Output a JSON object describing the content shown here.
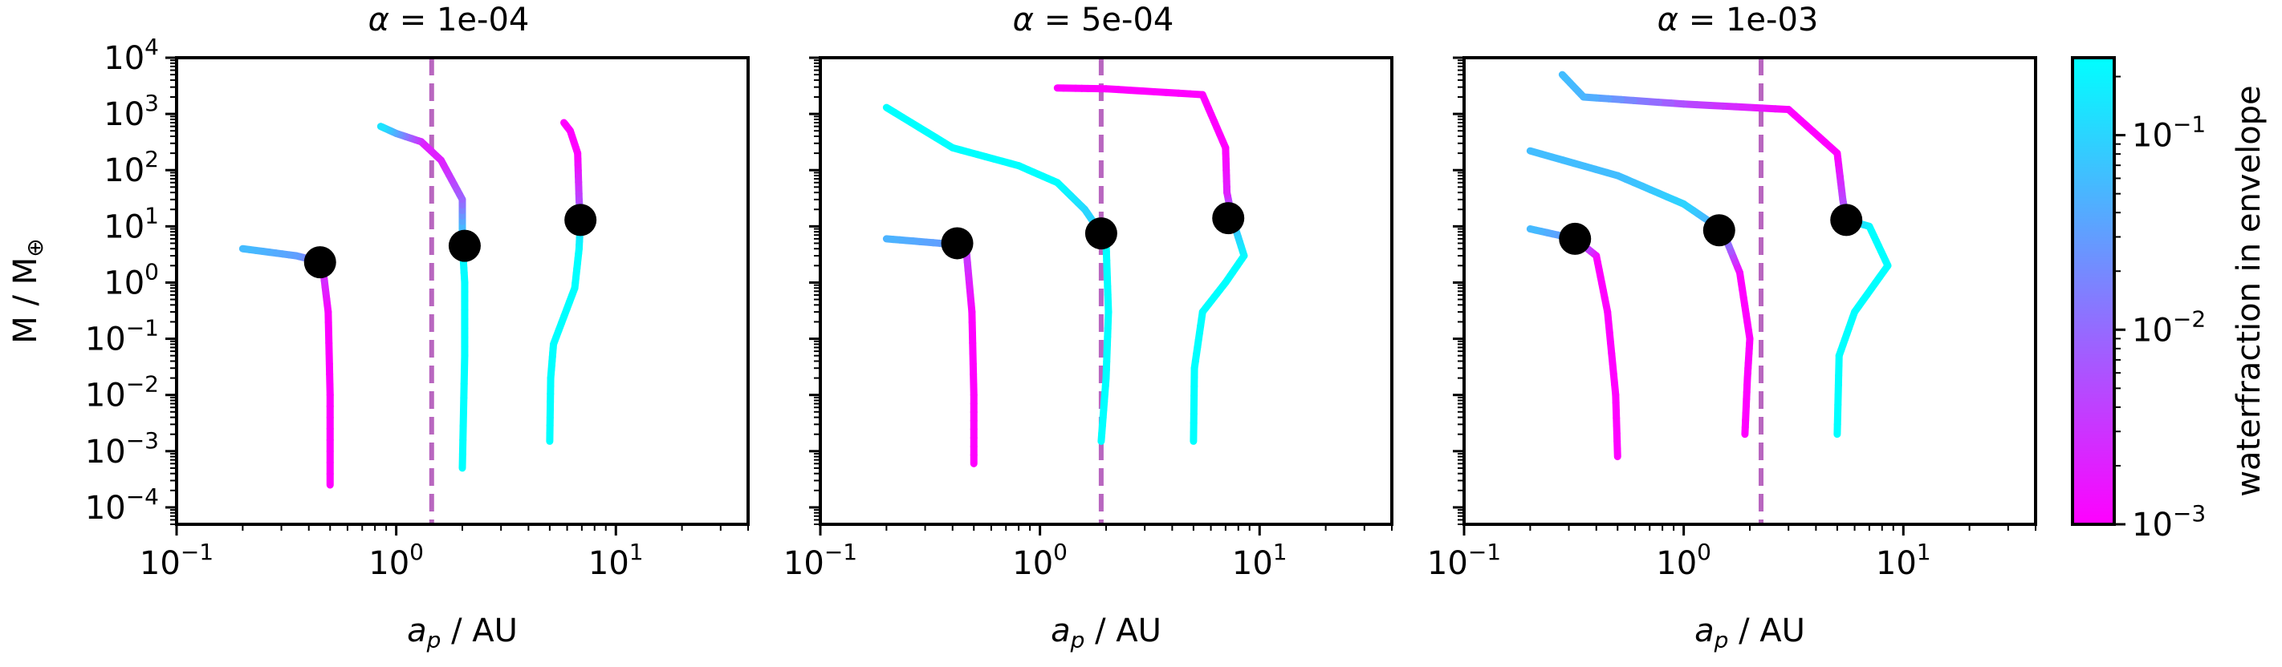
{
  "chart_data": [
    {
      "type": "line",
      "title_prefix": "α = ",
      "title_value": "1e-04",
      "xlabel_main": "a",
      "xlabel_sub": "p",
      "xlabel_unit": " / AU",
      "ylabel_main": "M / M",
      "ylabel_sub": "⊕",
      "xscale": "log",
      "yscale": "log",
      "xlim": [
        0.1,
        40
      ],
      "ylim": [
        5e-05,
        10000
      ],
      "x_ticks": [
        {
          "base": "10",
          "exp": "−1"
        },
        {
          "base": "10",
          "exp": "0"
        },
        {
          "base": "10",
          "exp": "1"
        }
      ],
      "y_ticks": [
        {
          "base": "10",
          "exp": "−4"
        },
        {
          "base": "10",
          "exp": "−3"
        },
        {
          "base": "10",
          "exp": "−2"
        },
        {
          "base": "10",
          "exp": "−1"
        },
        {
          "base": "10",
          "exp": "0"
        },
        {
          "base": "10",
          "exp": "1"
        },
        {
          "base": "10",
          "exp": "2"
        },
        {
          "base": "10",
          "exp": "3"
        },
        {
          "base": "10",
          "exp": "4"
        }
      ],
      "vline_x": 1.45,
      "tracks": [
        {
          "points": [
            [
              0.5,
              0.00025,
              0.001
            ],
            [
              0.5,
              0.01,
              0.001
            ],
            [
              0.49,
              0.3,
              0.001
            ],
            [
              0.46,
              2.3,
              0.004
            ],
            [
              0.35,
              3.0,
              0.03
            ],
            [
              0.2,
              4.0,
              0.06
            ]
          ],
          "marker": [
            0.45,
            2.3
          ]
        },
        {
          "points": [
            [
              2.0,
              0.0005,
              0.25
            ],
            [
              2.05,
              0.05,
              0.25
            ],
            [
              2.05,
              1.0,
              0.25
            ],
            [
              2.0,
              5.0,
              0.2
            ],
            [
              2.0,
              30,
              0.01
            ],
            [
              1.6,
              150,
              0.002
            ],
            [
              1.3,
              320,
              0.002
            ],
            [
              1.0,
              450,
              0.03
            ],
            [
              0.85,
              600,
              0.15
            ]
          ],
          "marker": [
            2.05,
            4.5
          ]
        },
        {
          "points": [
            [
              5.0,
              0.0015,
              0.25
            ],
            [
              5.05,
              0.02,
              0.25
            ],
            [
              5.2,
              0.08,
              0.25
            ],
            [
              6.5,
              0.8,
              0.25
            ],
            [
              6.8,
              4.0,
              0.25
            ],
            [
              6.9,
              13,
              0.1
            ],
            [
              6.8,
              30,
              0.005
            ],
            [
              6.7,
              200,
              0.001
            ],
            [
              6.2,
              500,
              0.001
            ],
            [
              5.8,
              700,
              0.001
            ]
          ],
          "marker": [
            6.9,
            13
          ]
        }
      ]
    },
    {
      "type": "line",
      "title_prefix": "α = ",
      "title_value": "5e-04",
      "xlabel_main": "a",
      "xlabel_sub": "p",
      "xlabel_unit": " / AU",
      "xscale": "log",
      "yscale": "log",
      "xlim": [
        0.1,
        40
      ],
      "ylim": [
        5e-05,
        10000
      ],
      "x_ticks": [
        {
          "base": "10",
          "exp": "−1"
        },
        {
          "base": "10",
          "exp": "0"
        },
        {
          "base": "10",
          "exp": "1"
        }
      ],
      "vline_x": 1.9,
      "tracks": [
        {
          "points": [
            [
              0.5,
              0.0006,
              0.001
            ],
            [
              0.5,
              0.01,
              0.001
            ],
            [
              0.49,
              0.3,
              0.001
            ],
            [
              0.46,
              4.5,
              0.004
            ],
            [
              0.35,
              5.0,
              0.03
            ],
            [
              0.2,
              6.0,
              0.05
            ]
          ],
          "marker": [
            0.42,
            5.0
          ]
        },
        {
          "points": [
            [
              1.9,
              0.0015,
              0.25
            ],
            [
              2.0,
              0.02,
              0.25
            ],
            [
              2.05,
              0.3,
              0.25
            ],
            [
              2.0,
              5.0,
              0.25
            ],
            [
              1.9,
              7.5,
              0.1
            ],
            [
              1.6,
              20,
              0.1
            ],
            [
              1.2,
              60,
              0.25
            ],
            [
              0.8,
              120,
              0.25
            ],
            [
              0.4,
              250,
              0.25
            ],
            [
              0.2,
              1300,
              0.25
            ]
          ],
          "marker": [
            1.9,
            7.5
          ]
        },
        {
          "points": [
            [
              5.0,
              0.0015,
              0.25
            ],
            [
              5.05,
              0.03,
              0.25
            ],
            [
              5.5,
              0.3,
              0.25
            ],
            [
              7.0,
              1.0,
              0.25
            ],
            [
              8.5,
              3.0,
              0.25
            ],
            [
              7.5,
              14,
              0.05
            ],
            [
              7.1,
              40,
              0.002
            ],
            [
              7.0,
              250,
              0.001
            ],
            [
              5.5,
              2200,
              0.001
            ],
            [
              2.0,
              2800,
              0.001
            ],
            [
              1.2,
              2900,
              0.001
            ]
          ],
          "marker": [
            7.2,
            14
          ]
        }
      ]
    },
    {
      "type": "line",
      "title_prefix": "α = ",
      "title_value": "1e-03",
      "xlabel_main": "a",
      "xlabel_sub": "p",
      "xlabel_unit": " / AU",
      "xscale": "log",
      "yscale": "log",
      "xlim": [
        0.1,
        40
      ],
      "ylim": [
        5e-05,
        10000
      ],
      "x_ticks": [
        {
          "base": "10",
          "exp": "−1"
        },
        {
          "base": "10",
          "exp": "0"
        },
        {
          "base": "10",
          "exp": "1"
        }
      ],
      "vline_x": 2.25,
      "tracks": [
        {
          "points": [
            [
              0.5,
              0.0008,
              0.001
            ],
            [
              0.49,
              0.01,
              0.001
            ],
            [
              0.45,
              0.3,
              0.001
            ],
            [
              0.4,
              3.0,
              0.001
            ],
            [
              0.32,
              6.0,
              0.02
            ],
            [
              0.2,
              9.0,
              0.06
            ]
          ],
          "marker": [
            0.32,
            6.0
          ]
        },
        {
          "points": [
            [
              1.9,
              0.002,
              0.001
            ],
            [
              1.95,
              0.02,
              0.001
            ],
            [
              2.0,
              0.1,
              0.001
            ],
            [
              1.8,
              1.5,
              0.001
            ],
            [
              1.5,
              8.5,
              0.03
            ],
            [
              1.0,
              25,
              0.1
            ],
            [
              0.5,
              80,
              0.06
            ],
            [
              0.2,
              220,
              0.06
            ]
          ],
          "marker": [
            1.45,
            8.5
          ]
        },
        {
          "points": [
            [
              5.0,
              0.002,
              0.25
            ],
            [
              5.1,
              0.05,
              0.25
            ],
            [
              6.0,
              0.3,
              0.25
            ],
            [
              8.5,
              2.0,
              0.25
            ],
            [
              7.0,
              10,
              0.25
            ],
            [
              5.5,
              13,
              0.05
            ],
            [
              5.3,
              30,
              0.005
            ],
            [
              5.0,
              200,
              0.001
            ],
            [
              3.0,
              1200,
              0.001
            ],
            [
              1.0,
              1500,
              0.005
            ],
            [
              0.35,
              2000,
              0.05
            ],
            [
              0.28,
              5000,
              0.06
            ]
          ],
          "marker": [
            5.5,
            13
          ]
        }
      ]
    }
  ],
  "colorbar": {
    "label": "waterfraction in envelope",
    "scale": "log",
    "range": [
      0.001,
      0.25
    ],
    "color_low": "#ff00ff",
    "color_high": "#00ffff",
    "ticks": [
      {
        "value": 0.001,
        "base": "10",
        "exp": "−3"
      },
      {
        "value": 0.01,
        "base": "10",
        "exp": "−2"
      },
      {
        "value": 0.1,
        "base": "10",
        "exp": "−1"
      }
    ]
  },
  "colors": {
    "marker": "#000000",
    "vline": "#b866bf"
  }
}
